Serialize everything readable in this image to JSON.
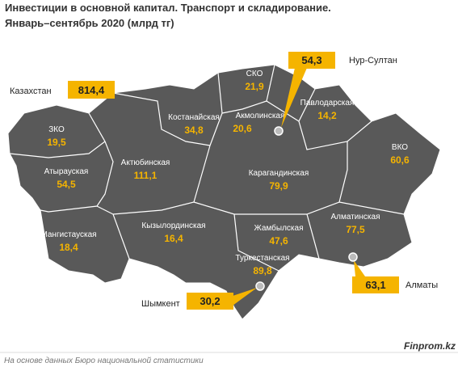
{
  "header": {
    "title": "Инвестиции в основной капитал. Транспорт и складирование.",
    "subtitle": "Январь–сентябрь 2020  (млрд тг)"
  },
  "total": {
    "label": "Казахстан",
    "value": "814,4"
  },
  "regions": [
    {
      "name": "ЗКО",
      "value": "19,5"
    },
    {
      "name": "Атырауская",
      "value": "54,5"
    },
    {
      "name": "Мангистауская",
      "value": "18,4"
    },
    {
      "name": "Актюбинская",
      "value": "111,1"
    },
    {
      "name": "Костанайская",
      "value": "34,8"
    },
    {
      "name": "СКО",
      "value": "21,9"
    },
    {
      "name": "Акмолинская",
      "value": "20,6"
    },
    {
      "name": "Павлодарская",
      "value": "14,2"
    },
    {
      "name": "ВКО",
      "value": "60,6"
    },
    {
      "name": "Карагандинская",
      "value": "79,9"
    },
    {
      "name": "Кызылординская",
      "value": "16,4"
    },
    {
      "name": "Жамбылская",
      "value": "47,6"
    },
    {
      "name": "Алматинская",
      "value": "77,5"
    },
    {
      "name": "Туркестанская",
      "value": "89,8"
    }
  ],
  "cities": [
    {
      "name": "Нур-Султан",
      "value": "54,3"
    },
    {
      "name": "Алматы",
      "value": "63,1"
    },
    {
      "name": "Шымкент",
      "value": "30,2"
    }
  ],
  "source": "На основе данных Бюро национальной статистики",
  "brand": "Finprom.kz"
}
